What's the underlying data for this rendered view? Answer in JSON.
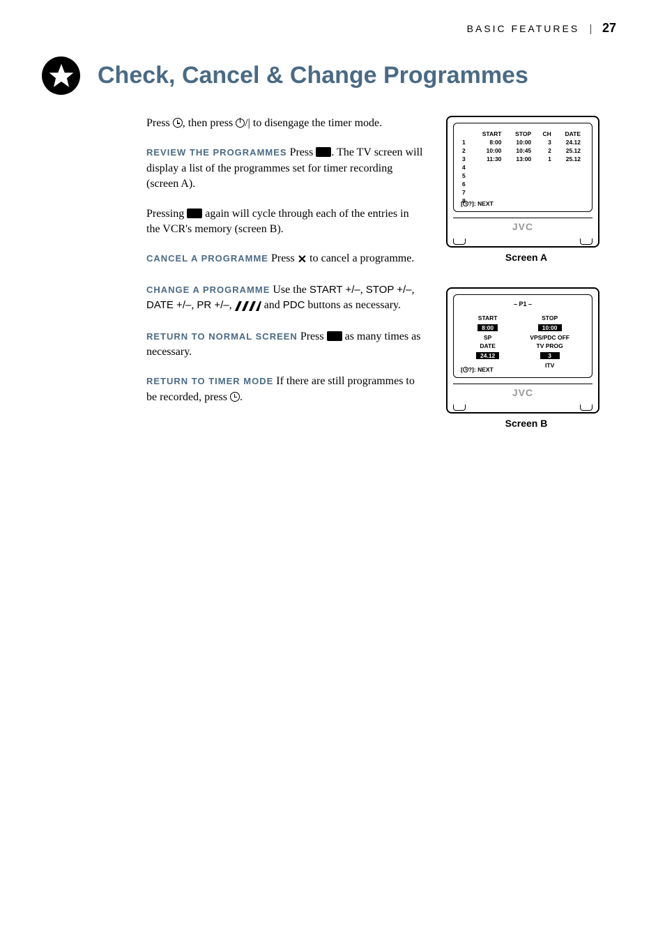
{
  "header": {
    "section": "BASIC FEATURES",
    "page": "27"
  },
  "title": "Check, Cancel & Change Programmes",
  "intro": {
    "part1": "Press ",
    "part2": ", then press ",
    "part3": "/| to disengage the timer mode."
  },
  "review": {
    "lead": "REVIEW THE PROGRAMMES",
    "body1": "  Press ",
    "body2": ". The TV screen will display a list of the programmes set for timer recording (screen A).",
    "press1": "Pressing ",
    "press2": " again will cycle through each of the entries in the VCR's memory (screen B)."
  },
  "cancel": {
    "lead": "CANCEL A PROGRAMME",
    "body1": " Press ",
    "x": "✕",
    "body2": " to cancel a programme."
  },
  "change": {
    "lead": "CHANGE A PROGRAMME",
    "body1": "  Use the ",
    "btn1": "START +/–",
    "sep1": ", ",
    "btn2": "STOP +/–",
    "sep2": ", ",
    "btn3": "DATE +/–",
    "sep3": ", ",
    "btn4": "PR +/–",
    "sep4": ", ",
    "body2": "  and ",
    "btn5": "PDC",
    "body3": " buttons as necessary."
  },
  "return_normal": {
    "lead": "RETURN TO NORMAL SCREEN",
    "body1": "  Press ",
    "body2": " as many times as necessary."
  },
  "return_timer": {
    "lead": "RETURN TO TIMER MODE",
    "body1": "  If there are still programmes to be recorded, press ",
    "body2": "."
  },
  "screen_a": {
    "label": "Screen A",
    "headers": [
      "",
      "START",
      "STOP",
      "CH",
      "DATE"
    ],
    "rows": [
      [
        "1",
        "8:00",
        "10:00",
        "3",
        "24.12"
      ],
      [
        "2",
        "10:00",
        "10:45",
        "2",
        "25.12"
      ],
      [
        "3",
        "11:30",
        "13:00",
        "1",
        "25.12"
      ],
      [
        "4",
        "",
        "",
        "",
        ""
      ],
      [
        "5",
        "",
        "",
        "",
        ""
      ],
      [
        "6",
        "",
        "",
        "",
        ""
      ],
      [
        "7",
        "",
        "",
        "",
        ""
      ],
      [
        "8",
        "",
        "",
        "",
        ""
      ]
    ],
    "hint": "]: NEXT"
  },
  "screen_b": {
    "label": "Screen B",
    "header": "– P1 –",
    "left": {
      "l1": "START",
      "v1": "8:00",
      "l2": "SP",
      "l3": "DATE",
      "v3": "24.12"
    },
    "right": {
      "l1": "STOP",
      "v1": "10:00",
      "l2": "VPS/PDC OFF",
      "l3": "TV PROG",
      "v3": "3",
      "l4": "ITV"
    },
    "hint": "]: NEXT"
  },
  "brand": "JVC"
}
